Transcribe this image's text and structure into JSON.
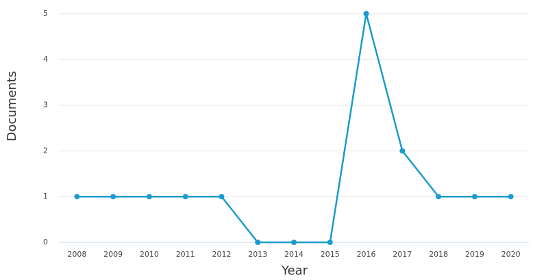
{
  "chart_data": {
    "type": "line",
    "x_label": "Year",
    "y_label": "Documents",
    "categories": [
      "2008",
      "2009",
      "2010",
      "2011",
      "2012",
      "2013",
      "2014",
      "2015",
      "2016",
      "2017",
      "2018",
      "2019",
      "2020"
    ],
    "series": [
      {
        "name": "Documents",
        "color": "#1a9ccc",
        "values": [
          1,
          1,
          1,
          1,
          1,
          0,
          0,
          0,
          5,
          2,
          1,
          1,
          1
        ]
      }
    ],
    "ylim": [
      0,
      5
    ],
    "yticks": [
      0,
      1,
      2,
      3,
      4,
      5
    ],
    "grid": true
  }
}
